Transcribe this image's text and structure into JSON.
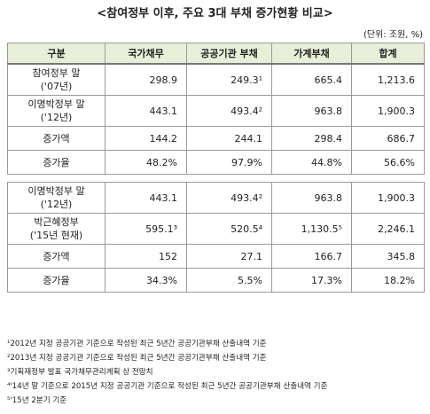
{
  "title": "<참여정부 이후, 주요 3대 부채 증가현황 비교>",
  "unit": "(단위: 조원, %)",
  "table": {
    "header": [
      "구분",
      "국가채무",
      "공공기관 부채",
      "가계부채",
      "합계"
    ],
    "sections": [
      {
        "rows": [
          {
            "label": [
              "참여정부 말",
              "('07년)"
            ],
            "cells": [
              "298.9",
              "249.3¹",
              "665.4",
              "1,213.6"
            ]
          },
          {
            "label": [
              "이명박정부 말",
              "('12년)"
            ],
            "cells": [
              "443.1",
              "493.4²",
              "963.8",
              "1,900.3"
            ]
          },
          {
            "label": [
              "증가액"
            ],
            "cells": [
              "144.2",
              "244.1",
              "298.4",
              "686.7"
            ]
          },
          {
            "label": [
              "증가율"
            ],
            "cells": [
              "48.2%",
              "97.9%",
              "44.8%",
              "56.6%"
            ]
          }
        ]
      },
      {
        "rows": [
          {
            "label": [
              "이명박정부 말",
              "('12년)"
            ],
            "cells": [
              "443.1",
              "493.4²",
              "963.8",
              "1,900.3"
            ]
          },
          {
            "label": [
              "박근혜정부",
              "('15년 현재)"
            ],
            "cells": [
              "595.1³",
              "520.5⁴",
              "1,130.5⁵",
              "2,246.1"
            ]
          },
          {
            "label": [
              "증가액"
            ],
            "cells": [
              "152",
              "27.1",
              "166.7",
              "345.8"
            ]
          },
          {
            "label": [
              "증가율"
            ],
            "cells": [
              "34.3%",
              "5.5%",
              "17.3%",
              "18.2%"
            ]
          }
        ]
      }
    ]
  },
  "footnotes": [
    "¹2012년 지정 공공기관 기준으로 작성된 최근 5년간 공공기관부채 산출내역 기준",
    "²2013년 지정 공공기관 기준으로 작성된 최근 5년간 공공기관부채 산출내역 기준",
    "³기획재정부 발표 국가채무관리계획 상 전망치",
    "⁴'14년 말 기준으로 2015년 지정 공공기관 기준으로 작성된 최근 5년간 공공기관부채 산출내역 기준",
    "⁵'15년 2분기 기준"
  ]
}
